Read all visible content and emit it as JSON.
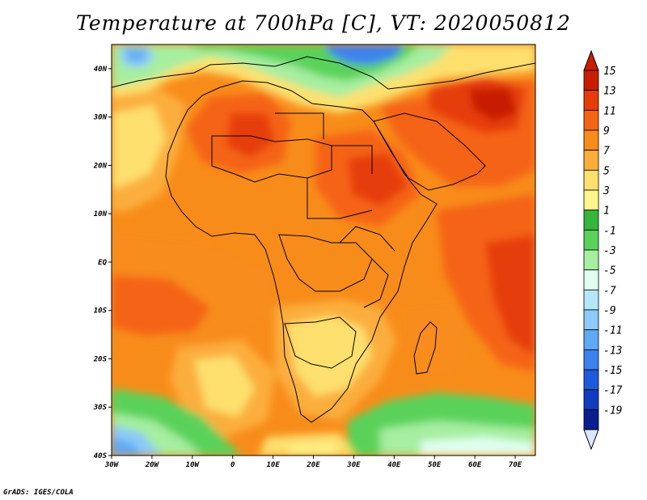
{
  "title": "Temperature at 700hPa [C], VT: 2020050812",
  "footer": "GrADS: IGES/COLA",
  "map": {
    "lon_range": [
      -30,
      75
    ],
    "lat_range": [
      -40,
      45
    ],
    "x_ticks": [
      {
        "value": -30,
        "label": "30W"
      },
      {
        "value": -20,
        "label": "20W"
      },
      {
        "value": -10,
        "label": "10W"
      },
      {
        "value": 0,
        "label": "0"
      },
      {
        "value": 10,
        "label": "10E"
      },
      {
        "value": 20,
        "label": "20E"
      },
      {
        "value": 30,
        "label": "30E"
      },
      {
        "value": 40,
        "label": "40E"
      },
      {
        "value": 50,
        "label": "50E"
      },
      {
        "value": 60,
        "label": "60E"
      },
      {
        "value": 70,
        "label": "70E"
      }
    ],
    "y_ticks": [
      {
        "value": 40,
        "label": "40N"
      },
      {
        "value": 30,
        "label": "30N"
      },
      {
        "value": 20,
        "label": "20N"
      },
      {
        "value": 10,
        "label": "10N"
      },
      {
        "value": 0,
        "label": "EQ"
      },
      {
        "value": -10,
        "label": "10S"
      },
      {
        "value": -20,
        "label": "20S"
      },
      {
        "value": -30,
        "label": "30S"
      },
      {
        "value": -40,
        "label": "40S"
      }
    ]
  },
  "colorbar": {
    "levels": [
      {
        "label": "15",
        "color": "#c81e00"
      },
      {
        "label": "13",
        "color": "#e63c0a"
      },
      {
        "label": "11",
        "color": "#f56414"
      },
      {
        "label": "9",
        "color": "#f88c1a"
      },
      {
        "label": "7",
        "color": "#fbae3c"
      },
      {
        "label": "5",
        "color": "#fde06e"
      },
      {
        "label": "3",
        "color": "#fdf58c"
      },
      {
        "label": "1",
        "color": "#36b43c"
      },
      {
        "label": "-1",
        "color": "#5ad25a"
      },
      {
        "label": "-3",
        "color": "#a6eea0"
      },
      {
        "label": "-5",
        "color": "#e0fff0"
      },
      {
        "label": "-7",
        "color": "#b4e6fa"
      },
      {
        "label": "-9",
        "color": "#8ccaf8"
      },
      {
        "label": "-11",
        "color": "#60aaf5"
      },
      {
        "label": "-13",
        "color": "#3c82ee"
      },
      {
        "label": "-15",
        "color": "#1e5adc"
      },
      {
        "label": "-17",
        "color": "#0f3cbe"
      },
      {
        "label": "-19",
        "color": "#0a1e8c"
      }
    ],
    "top_color": "#c81e00",
    "bottom_color": "#dce6ff"
  }
}
